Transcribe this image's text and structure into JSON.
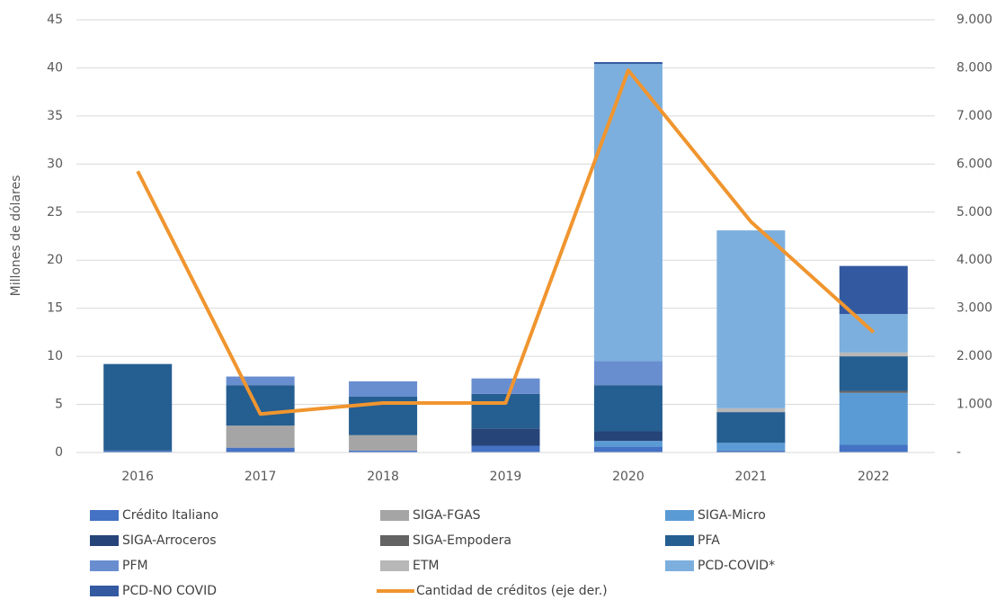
{
  "chart_data": {
    "type": "bar",
    "y_label": "Millones de dólares",
    "categories": [
      "2016",
      "2017",
      "2018",
      "2019",
      "2020",
      "2021",
      "2022"
    ],
    "ylim": [
      0,
      45
    ],
    "yticks": [
      0,
      5,
      10,
      15,
      20,
      25,
      30,
      35,
      40,
      45
    ],
    "y2lim": [
      0,
      9000
    ],
    "y2ticks": [
      {
        "value": 0,
        "label": "-"
      },
      {
        "value": 1000,
        "label": "1.000"
      },
      {
        "value": 2000,
        "label": "2.000"
      },
      {
        "value": 3000,
        "label": "3.000"
      },
      {
        "value": 4000,
        "label": "4.000"
      },
      {
        "value": 5000,
        "label": "5.000"
      },
      {
        "value": 6000,
        "label": "6.000"
      },
      {
        "value": 7000,
        "label": "7.000"
      },
      {
        "value": 8000,
        "label": "8.000"
      },
      {
        "value": 9000,
        "label": "9.000"
      }
    ],
    "grid": true,
    "legend": "bottom",
    "series": [
      {
        "name": "Crédito Italiano",
        "color": "#4472c4",
        "values": [
          0.2,
          0.5,
          0.2,
          0.7,
          0.6,
          0.2,
          0.8
        ]
      },
      {
        "name": "SIGA-FGAS",
        "color": "#a5a5a5",
        "values": [
          0,
          2.3,
          1.6,
          0,
          0,
          0,
          0
        ]
      },
      {
        "name": "SIGA-Micro",
        "color": "#5b9bd5",
        "values": [
          0,
          0,
          0,
          0,
          0.6,
          0.8,
          5.4
        ]
      },
      {
        "name": "SIGA-Arroceros",
        "color": "#264478",
        "values": [
          0,
          0,
          0,
          1.8,
          1.0,
          0,
          0
        ]
      },
      {
        "name": "SIGA-Empodera",
        "color": "#636363",
        "values": [
          0,
          0,
          0,
          0,
          0,
          0,
          0.2
        ]
      },
      {
        "name": "PFA",
        "color": "#255e91",
        "values": [
          9.0,
          4.2,
          4.0,
          3.6,
          4.8,
          3.2,
          3.6
        ]
      },
      {
        "name": "PFM",
        "color": "#698ed0",
        "values": [
          0,
          0.9,
          1.6,
          1.6,
          2.5,
          0,
          0
        ]
      },
      {
        "name": "ETM",
        "color": "#b7b7b7",
        "values": [
          0,
          0,
          0,
          0,
          0,
          0.4,
          0.4
        ]
      },
      {
        "name": "PCD-COVID*",
        "color": "#7cafdd",
        "values": [
          0,
          0,
          0,
          0,
          30.9,
          18.5,
          4.0
        ]
      },
      {
        "name": "PCD-NO COVID",
        "color": "#335aa1",
        "values": [
          0,
          0,
          0,
          0,
          0.2,
          0,
          5.0
        ]
      },
      {
        "name": "Cantidad de créditos (eje der.)",
        "color": "#f0952f",
        "type": "line",
        "axis": "y2",
        "values": [
          5850,
          800,
          1030,
          1030,
          7950,
          4800,
          2500
        ]
      }
    ]
  }
}
